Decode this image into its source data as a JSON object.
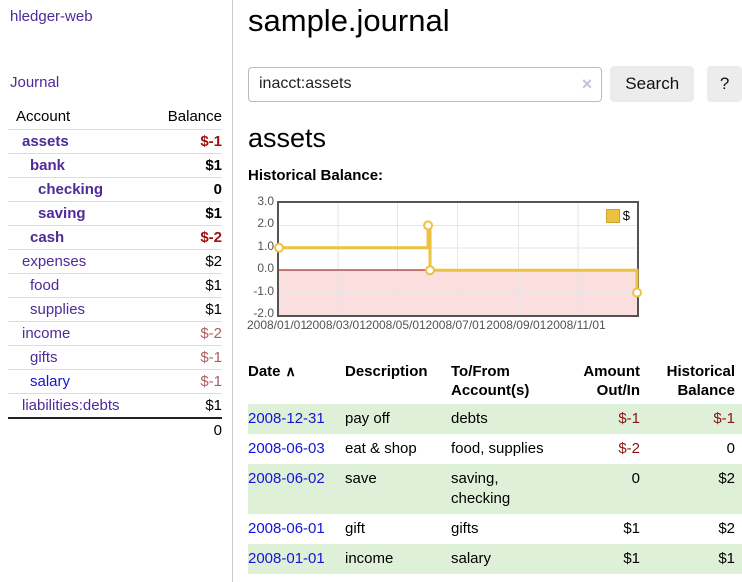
{
  "sidebar": {
    "app_title": "hledger-web",
    "journal_link": "Journal",
    "table": {
      "account_header": "Account",
      "balance_header": "Balance",
      "total": "0"
    },
    "accounts": [
      {
        "name": "assets",
        "balance": "$-1",
        "depth": 1,
        "bold": true,
        "color": "purple",
        "balance_style": "neg-strong"
      },
      {
        "name": "bank",
        "balance": "$1",
        "depth": 2,
        "bold": true,
        "color": "purple",
        "balance_style": "pos"
      },
      {
        "name": "checking",
        "balance": "0",
        "depth": 3,
        "bold": true,
        "color": "purple",
        "balance_style": "pos"
      },
      {
        "name": "saving",
        "balance": "$1",
        "depth": 3,
        "bold": true,
        "color": "purple",
        "balance_style": "pos"
      },
      {
        "name": "cash",
        "balance": "$-2",
        "depth": 2,
        "bold": true,
        "color": "purple",
        "balance_style": "neg-strong"
      },
      {
        "name": "expenses",
        "balance": "$2",
        "depth": 1,
        "bold": false,
        "color": "purple",
        "balance_style": "pos"
      },
      {
        "name": "food",
        "balance": "$1",
        "depth": 2,
        "bold": false,
        "color": "purple",
        "balance_style": "pos"
      },
      {
        "name": "supplies",
        "balance": "$1",
        "depth": 2,
        "bold": false,
        "color": "purple",
        "balance_style": "pos"
      },
      {
        "name": "income",
        "balance": "$-2",
        "depth": 1,
        "bold": false,
        "color": "purple",
        "balance_style": "neg-soft"
      },
      {
        "name": "gifts",
        "balance": "$-1",
        "depth": 2,
        "bold": false,
        "color": "purple",
        "balance_style": "neg-soft"
      },
      {
        "name": "salary",
        "balance": "$-1",
        "depth": 2,
        "bold": false,
        "color": "blue",
        "balance_style": "neg-soft"
      },
      {
        "name": "liabilities:debts",
        "balance": "$1",
        "depth": 1,
        "bold": false,
        "color": "purple",
        "balance_style": "pos"
      }
    ]
  },
  "main": {
    "title": "sample.journal",
    "search": {
      "value": "inacct:assets",
      "clear_icon": "×",
      "search_button": "Search",
      "help_button": "?"
    },
    "account_heading": "assets",
    "chart_label": "Historical Balance:"
  },
  "chart_data": {
    "type": "line",
    "style": "step",
    "title": "Historical Balance",
    "legend": [
      {
        "label": "$",
        "color": "#edc240"
      }
    ],
    "legend_position": "top-right",
    "x_ticks": [
      {
        "label": "2008/01/01",
        "pos": 0.0
      },
      {
        "label": "2008/03/01",
        "pos": 0.1644
      },
      {
        "label": "2008/05/01",
        "pos": 0.3315
      },
      {
        "label": "2008/07/01",
        "pos": 0.4986
      },
      {
        "label": "2008/09/01",
        "pos": 0.6685
      },
      {
        "label": "2008/11/01",
        "pos": 0.8356
      }
    ],
    "y_ticks": [
      3.0,
      2.0,
      1.0,
      0.0,
      -1.0,
      -2.0
    ],
    "ylim": [
      -2,
      3
    ],
    "xlim": [
      "2008/01/01",
      "2008/12/31"
    ],
    "grid": true,
    "series": [
      {
        "name": "$",
        "color": "#edc240",
        "points": [
          {
            "date": "2008/01/01",
            "x": 0.0,
            "y": 1
          },
          {
            "date": "2008/06/01",
            "x": 0.4164,
            "y": 2
          },
          {
            "date": "2008/06/03",
            "x": 0.4219,
            "y": 0
          },
          {
            "date": "2008/12/31",
            "x": 1.0,
            "y": -1
          }
        ]
      }
    ],
    "negative_region_fill": "#fbdede",
    "zero_line_color": "#8b0000",
    "grid_color": "#e6e6e6",
    "border_color": "#545454"
  },
  "transactions": {
    "headers": [
      "Date",
      "Description",
      "To/From Account(s)",
      "Amount Out/In",
      "Historical Balance"
    ],
    "sort_icon": "∧",
    "rows": [
      {
        "date": "2008-12-31",
        "description": "pay off",
        "accounts": "debts",
        "amount": "$-1",
        "amount_neg": true,
        "balance": "$-1",
        "balance_neg": true
      },
      {
        "date": "2008-06-03",
        "description": "eat & shop",
        "accounts": "food, supplies",
        "amount": "$-2",
        "amount_neg": true,
        "balance": "0",
        "balance_neg": false
      },
      {
        "date": "2008-06-02",
        "description": "save",
        "accounts": "saving, checking",
        "amount": "0",
        "amount_neg": false,
        "balance": "$2",
        "balance_neg": false
      },
      {
        "date": "2008-06-01",
        "description": "gift",
        "accounts": "gifts",
        "amount": "$1",
        "amount_neg": false,
        "balance": "$2",
        "balance_neg": false
      },
      {
        "date": "2008-01-01",
        "description": "income",
        "accounts": "salary",
        "amount": "$1",
        "amount_neg": false,
        "balance": "$1",
        "balance_neg": false
      }
    ]
  },
  "colors": {
    "link_purple": "#4e2a9a",
    "link_blue": "#1414d6",
    "negative_strong": "#a01010",
    "negative_soft": "#b15b63",
    "table_negative": "#8b1414",
    "row_stripe_green": "#dff0d8",
    "series_yellow": "#edc240"
  }
}
